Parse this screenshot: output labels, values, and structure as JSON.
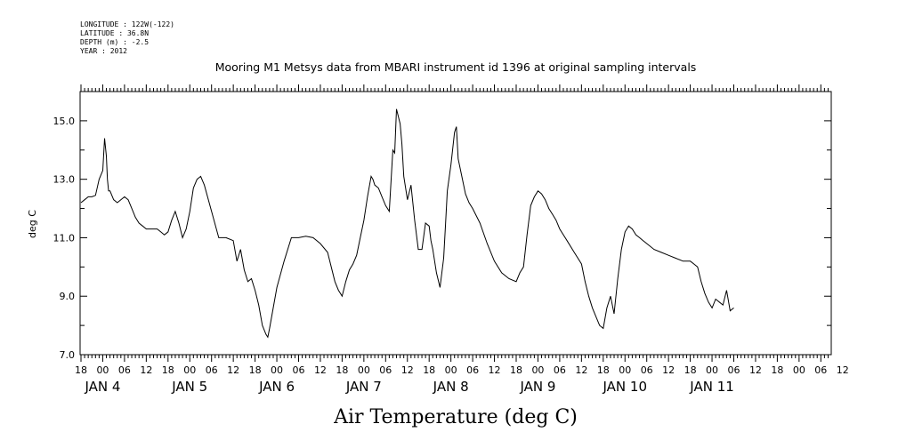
{
  "header": {
    "meta_lines": [
      "LONGITUDE : 122W(-122)",
      "LATITUDE : 36.8N",
      "DEPTH (m) : -2.5",
      "YEAR : 2012"
    ],
    "title": "Mooring M1 Metsys data from MBARI instrument id 1396 at original sampling intervals"
  },
  "chart_data": {
    "type": "line",
    "title": "Mooring M1 Metsys data from MBARI instrument id 1396 at original sampling intervals",
    "xlabel": "Air Temperature (deg C)",
    "ylabel": "deg C",
    "ylim": [
      7.0,
      16.0
    ],
    "y_ticks": [
      7.0,
      9.0,
      11.0,
      13.0,
      15.0
    ],
    "y_tick_labels": [
      "7.0",
      "9.0",
      "11.0",
      "13.0",
      "15.0"
    ],
    "x_unit": "hours since 2012-01-03 18:00",
    "xlim": [
      0,
      201
    ],
    "x_hour_ticks": [
      {
        "x": 0,
        "label": "18"
      },
      {
        "x": 6,
        "label": "00"
      },
      {
        "x": 12,
        "label": "06"
      },
      {
        "x": 18,
        "label": "12"
      },
      {
        "x": 24,
        "label": "18"
      },
      {
        "x": 30,
        "label": "00"
      },
      {
        "x": 36,
        "label": "06"
      },
      {
        "x": 42,
        "label": "12"
      },
      {
        "x": 48,
        "label": "18"
      },
      {
        "x": 54,
        "label": "00"
      },
      {
        "x": 60,
        "label": "06"
      },
      {
        "x": 66,
        "label": "12"
      },
      {
        "x": 72,
        "label": "18"
      },
      {
        "x": 78,
        "label": "00"
      },
      {
        "x": 84,
        "label": "06"
      },
      {
        "x": 90,
        "label": "12"
      },
      {
        "x": 96,
        "label": "18"
      },
      {
        "x": 102,
        "label": "00"
      },
      {
        "x": 108,
        "label": "06"
      },
      {
        "x": 114,
        "label": "12"
      },
      {
        "x": 120,
        "label": "18"
      },
      {
        "x": 126,
        "label": "00"
      },
      {
        "x": 132,
        "label": "06"
      },
      {
        "x": 138,
        "label": "12"
      },
      {
        "x": 144,
        "label": "18"
      },
      {
        "x": 150,
        "label": "00"
      },
      {
        "x": 156,
        "label": "06"
      },
      {
        "x": 162,
        "label": "12"
      },
      {
        "x": 168,
        "label": "18"
      },
      {
        "x": 174,
        "label": "00"
      },
      {
        "x": 180,
        "label": "06"
      },
      {
        "x": 186,
        "label": "12"
      },
      {
        "x": 192,
        "label": "18"
      },
      {
        "x": 198,
        "label": "00"
      },
      {
        "x": 204,
        "label": "06"
      },
      {
        "x": 210,
        "label": "12"
      }
    ],
    "x_day_labels": [
      {
        "x": 6,
        "label": "JAN  4"
      },
      {
        "x": 30,
        "label": "JAN  5"
      },
      {
        "x": 54,
        "label": "JAN  6"
      },
      {
        "x": 78,
        "label": "JAN  7"
      },
      {
        "x": 102,
        "label": "JAN  8"
      },
      {
        "x": 126,
        "label": "JAN  9"
      },
      {
        "x": 150,
        "label": "JAN 10"
      },
      {
        "x": 174,
        "label": "JAN 11"
      }
    ],
    "grid": false,
    "series": [
      {
        "x": [
          0,
          1,
          2,
          3,
          4,
          5,
          6,
          6.5,
          7,
          7.3,
          7.6,
          8,
          9,
          10,
          11,
          12,
          13,
          14,
          15,
          16,
          17,
          18,
          19,
          20,
          21,
          22,
          23,
          24,
          25,
          26,
          27,
          28,
          29,
          30,
          31,
          32,
          33,
          34,
          36,
          38,
          40,
          42,
          43,
          44,
          45,
          46,
          47,
          48,
          49,
          50,
          51,
          51.5,
          52,
          53,
          54,
          56,
          58,
          60,
          62,
          64,
          66,
          68,
          70,
          71,
          72,
          73,
          74,
          75,
          76,
          77,
          78,
          79,
          80,
          80.5,
          81,
          82,
          83,
          84,
          85,
          86,
          86.5,
          87,
          88,
          88.5,
          89,
          90,
          91,
          92,
          93,
          94,
          95,
          96,
          96.5,
          97,
          98,
          99,
          100,
          100.5,
          101,
          102,
          103,
          103.5,
          104,
          105,
          106,
          107,
          108,
          110,
          112,
          114,
          116,
          118,
          120,
          121,
          122,
          123,
          124,
          125,
          126,
          127,
          128,
          129,
          130,
          131,
          132,
          134,
          136,
          138,
          139,
          140,
          141,
          142,
          143,
          144,
          145,
          146,
          147,
          148,
          149,
          150,
          151,
          152,
          153,
          154,
          155,
          156,
          158,
          160,
          162,
          164,
          166,
          168,
          169,
          170,
          171,
          172,
          173,
          174,
          175,
          176,
          177,
          178,
          179,
          180
        ],
        "y": [
          12.2,
          12.3,
          12.4,
          12.4,
          12.45,
          13.0,
          13.3,
          14.4,
          13.8,
          13.0,
          12.6,
          12.6,
          12.3,
          12.2,
          12.3,
          12.4,
          12.3,
          12.0,
          11.7,
          11.5,
          11.4,
          11.3,
          11.3,
          11.3,
          11.3,
          11.2,
          11.1,
          11.2,
          11.6,
          11.9,
          11.5,
          11.0,
          11.3,
          11.9,
          12.7,
          13.0,
          13.1,
          12.8,
          11.9,
          11.0,
          11.0,
          10.9,
          10.2,
          10.6,
          9.9,
          9.5,
          9.6,
          9.2,
          8.7,
          8.0,
          7.7,
          7.6,
          7.9,
          8.6,
          9.3,
          10.2,
          11.0,
          11.0,
          11.05,
          11.0,
          10.8,
          10.5,
          9.5,
          9.2,
          9.0,
          9.5,
          9.9,
          10.1,
          10.4,
          11.0,
          11.6,
          12.4,
          13.1,
          13.0,
          12.8,
          12.7,
          12.4,
          12.1,
          11.9,
          14.0,
          13.9,
          15.4,
          14.9,
          14.2,
          13.1,
          12.3,
          12.8,
          11.6,
          10.6,
          10.6,
          11.5,
          11.4,
          10.9,
          10.6,
          9.8,
          9.3,
          10.3,
          11.4,
          12.6,
          13.5,
          14.6,
          14.8,
          13.7,
          13.1,
          12.5,
          12.2,
          12.0,
          11.5,
          10.8,
          10.2,
          9.8,
          9.6,
          9.5,
          9.8,
          10.0,
          11.1,
          12.1,
          12.4,
          12.6,
          12.5,
          12.3,
          12.0,
          11.8,
          11.6,
          11.3,
          10.9,
          10.5,
          10.1,
          9.5,
          9.0,
          8.6,
          8.3,
          8.0,
          7.9,
          8.6,
          9.0,
          8.4,
          9.6,
          10.6,
          11.2,
          11.4,
          11.3,
          11.1,
          11.0,
          10.9,
          10.8,
          10.6,
          10.5,
          10.4,
          10.3,
          10.2,
          10.2,
          10.1,
          10.0,
          9.5,
          9.1,
          8.8,
          8.6,
          8.9,
          8.8,
          8.7,
          9.2,
          8.5,
          8.6
        ]
      }
    ]
  }
}
